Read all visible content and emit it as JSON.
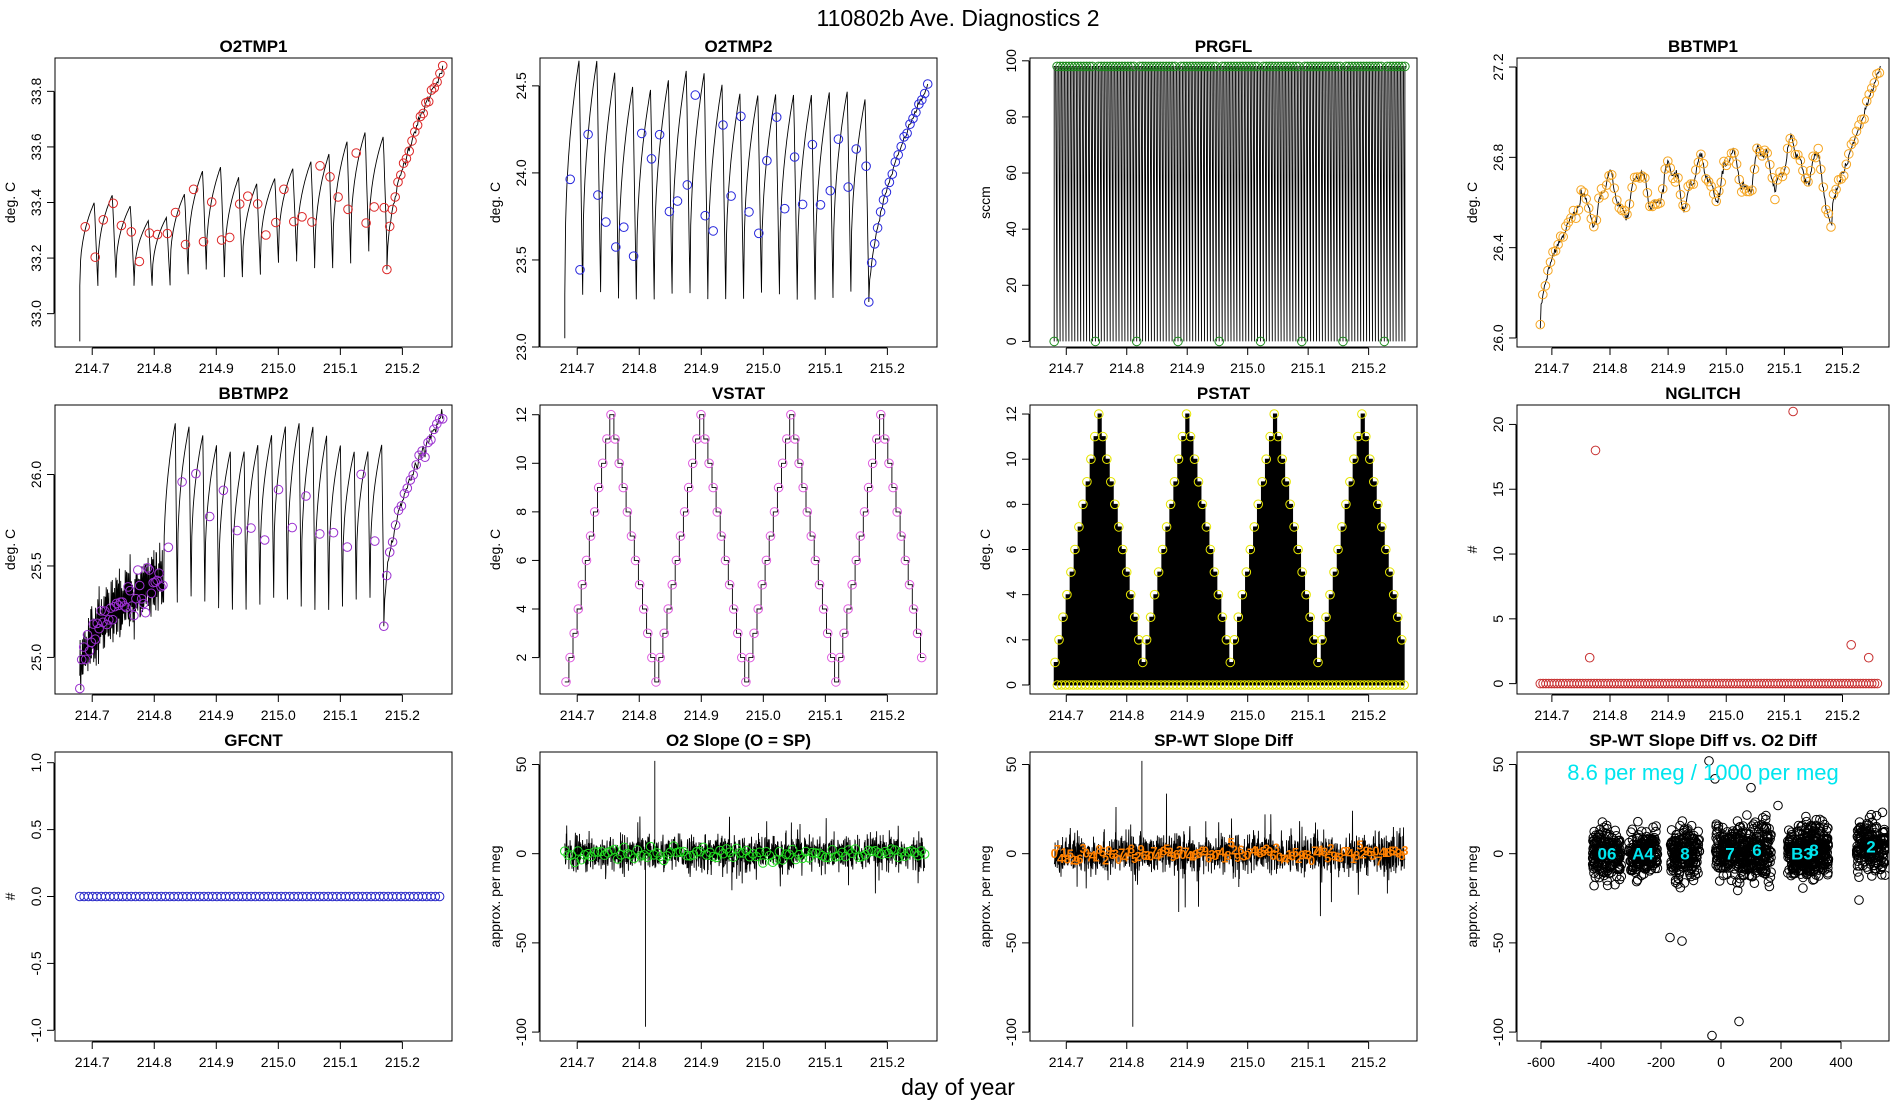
{
  "page": {
    "title": "110802b   Ave. Diagnostics 2",
    "xlabel": "day of year",
    "background": "#ffffff"
  },
  "chart_data": [
    {
      "id": "o2tmp1",
      "type": "line",
      "title": "O2TMP1",
      "ylabel": "deg. C",
      "xlim": [
        214.64,
        215.28
      ],
      "ylim": [
        32.88,
        33.92
      ],
      "xticks": [
        214.7,
        214.8,
        214.9,
        215.0,
        215.1,
        215.2
      ],
      "yticks": [
        33.0,
        33.2,
        33.4,
        33.6,
        33.8
      ],
      "ydec": 1,
      "gen": {
        "kind": "sawtooth",
        "start": 32.9,
        "base": [
          33.1,
          33.22
        ],
        "amp": [
          0.25,
          0.42
        ],
        "cycles": 17,
        "x0": 214.68,
        "xr": 215.265,
        "rampx": 215.175,
        "rampv": 33.88
      },
      "point_color": "#dc2828",
      "line_color": "#000000"
    },
    {
      "id": "o2tmp2",
      "type": "line",
      "title": "O2TMP2",
      "ylabel": "deg. C",
      "xlim": [
        214.64,
        215.28
      ],
      "ylim": [
        23.0,
        24.66
      ],
      "xticks": [
        214.7,
        214.8,
        214.9,
        215.0,
        215.1,
        215.2
      ],
      "yticks": [
        23.0,
        23.5,
        24.0,
        24.5
      ],
      "ydec": 1,
      "gen": {
        "kind": "sawtooth",
        "start": 23.05,
        "base": [
          23.3,
          23.3
        ],
        "amp": [
          1.3,
          1.1
        ],
        "cycles": 17,
        "x0": 214.68,
        "xr": 215.265,
        "rampx": 215.17,
        "rampv": 24.5
      },
      "point_color": "#2828dc",
      "line_color": "#000000"
    },
    {
      "id": "prgfl",
      "type": "line",
      "title": "PRGFL",
      "ylabel": "sccm",
      "xlim": [
        214.64,
        215.28
      ],
      "ylim": [
        -2,
        101
      ],
      "xticks": [
        214.7,
        214.8,
        214.9,
        215.0,
        215.1,
        215.2
      ],
      "yticks": [
        0,
        20,
        40,
        60,
        80,
        100
      ],
      "ydec": 0,
      "gen": {
        "kind": "spikes",
        "hi": 98,
        "lo": 0,
        "count": 120,
        "x0": 214.68,
        "xr": 215.26
      },
      "point_color": "#1e8c1e",
      "line_color": "#000000"
    },
    {
      "id": "bbtmp1",
      "type": "line",
      "title": "BBTMP1",
      "ylabel": "deg. C",
      "xlim": [
        214.64,
        215.28
      ],
      "ylim": [
        25.96,
        27.24
      ],
      "xticks": [
        214.7,
        214.8,
        214.9,
        215.0,
        215.1,
        215.2
      ],
      "yticks": [
        26.0,
        26.4,
        26.8,
        27.2
      ],
      "ydec": 1,
      "gen": {
        "kind": "smooth",
        "x0": 214.68,
        "xr": 215.265,
        "start": 26.05,
        "mid": 26.6,
        "mid2": 26.8,
        "end": 27.2
      },
      "point_color": "#f5a623",
      "line_color": "#000000"
    },
    {
      "id": "bbtmp2",
      "type": "line",
      "title": "BBTMP2",
      "ylabel": "deg. C",
      "xlim": [
        214.64,
        215.28
      ],
      "ylim": [
        24.8,
        26.38
      ],
      "xticks": [
        214.7,
        214.8,
        214.9,
        215.0,
        215.1,
        215.2
      ],
      "yticks": [
        25.0,
        25.5,
        26.0
      ],
      "ydec": 1,
      "gen": {
        "kind": "sawtooth2",
        "start": 24.85,
        "x0": 214.68,
        "xb": 214.815,
        "xr": 215.265,
        "rampx": 215.17,
        "rampv": 26.33
      },
      "point_color": "#9b30d0",
      "line_color": "#000000"
    },
    {
      "id": "vstat",
      "type": "line",
      "title": "VSTAT",
      "ylabel": "deg. C",
      "xlim": [
        214.64,
        215.28
      ],
      "ylim": [
        0.5,
        12.4
      ],
      "xticks": [
        214.7,
        214.8,
        214.9,
        215.0,
        215.1,
        215.2
      ],
      "yticks": [
        2,
        4,
        6,
        8,
        10,
        12
      ],
      "ydec": 0,
      "gen": {
        "kind": "stairs",
        "min": 1,
        "max": 12,
        "x0": 214.68,
        "xr": 215.26,
        "periods": 4
      },
      "point_color": "#e060e0",
      "line_color": "#000000"
    },
    {
      "id": "pstat",
      "type": "line",
      "title": "PSTAT",
      "ylabel": "deg. C",
      "xlim": [
        214.64,
        215.28
      ],
      "ylim": [
        -0.4,
        12.4
      ],
      "xticks": [
        214.7,
        214.8,
        214.9,
        215.0,
        215.1,
        215.2
      ],
      "yticks": [
        0,
        2,
        4,
        6,
        8,
        10,
        12
      ],
      "ydec": 0,
      "gen": {
        "kind": "pstairs",
        "min": 1,
        "max": 12,
        "x0": 214.68,
        "xr": 215.26,
        "periods": 4
      },
      "point_color": "#e6e600",
      "line_color": "#000000"
    },
    {
      "id": "nglitch",
      "type": "scatter",
      "title": "NGLITCH",
      "ylabel": "#",
      "xlim": [
        214.64,
        215.28
      ],
      "ylim": [
        -0.8,
        21.5
      ],
      "xticks": [
        214.7,
        214.8,
        214.9,
        215.0,
        215.1,
        215.2
      ],
      "yticks": [
        0,
        5,
        10,
        15,
        20
      ],
      "ydec": 0,
      "gen": {
        "kind": "zeros",
        "x0": 214.68,
        "xr": 215.26,
        "n": 120,
        "outliers": [
          [
            214.765,
            2
          ],
          [
            214.775,
            18
          ],
          [
            215.115,
            21
          ],
          [
            215.215,
            3
          ],
          [
            215.245,
            2
          ]
        ]
      },
      "point_color": "#c83232",
      "line_color": "#000000"
    },
    {
      "id": "gfcnt",
      "type": "scatter",
      "title": "GFCNT",
      "ylabel": "#",
      "xlim": [
        214.64,
        215.28
      ],
      "ylim": [
        -1.08,
        1.08
      ],
      "xticks": [
        214.7,
        214.8,
        214.9,
        215.0,
        215.1,
        215.2
      ],
      "yticks": [
        -1.0,
        -0.5,
        0.0,
        0.5,
        1.0
      ],
      "ydec": 1,
      "gen": {
        "kind": "zeros",
        "x0": 214.68,
        "xr": 215.26,
        "n": 85,
        "outliers": []
      },
      "point_color": "#2828c8",
      "line_color": "#000000"
    },
    {
      "id": "o2slope",
      "type": "line",
      "title": "O2 Slope (O = SP)",
      "ylabel": "approx. per meg",
      "xlim": [
        214.64,
        215.28
      ],
      "ylim": [
        -105,
        57
      ],
      "xticks": [
        214.7,
        214.8,
        214.9,
        215.0,
        215.1,
        215.2
      ],
      "yticks": [
        -100,
        -50,
        0,
        50
      ],
      "ydec": 0,
      "gen": {
        "kind": "noise",
        "x0": 214.68,
        "xr": 215.26,
        "n": 1500,
        "sd": 5,
        "spikes": [
          [
            214.81,
            -97
          ],
          [
            214.825,
            52
          ]
        ],
        "markers": "circles"
      },
      "point_color": "#22dd22",
      "line_color": "#000000"
    },
    {
      "id": "spwtdiff",
      "type": "line",
      "title": "SP-WT Slope Diff",
      "ylabel": "approx. per meg",
      "xlim": [
        214.64,
        215.28
      ],
      "ylim": [
        -105,
        57
      ],
      "xticks": [
        214.7,
        214.8,
        214.9,
        215.0,
        215.1,
        215.2
      ],
      "yticks": [
        -100,
        -50,
        0,
        50
      ],
      "ydec": 0,
      "gen": {
        "kind": "noise",
        "x0": 214.68,
        "xr": 215.26,
        "n": 1500,
        "sd": 5.5,
        "spikes": [
          [
            214.81,
            -97
          ],
          [
            214.825,
            52
          ]
        ],
        "markers": "digits"
      },
      "point_color": "#ff8000",
      "line_color": "#000000"
    },
    {
      "id": "spwtvso2",
      "type": "scatter",
      "title": "SP-WT Slope Diff vs. O2 Diff",
      "ylabel": "approx. per meg",
      "xlim": [
        -680,
        560
      ],
      "ylim": [
        -105,
        57
      ],
      "xticks": [
        -600,
        -400,
        -200,
        0,
        200,
        400
      ],
      "yticks": [
        -100,
        -50,
        0,
        50
      ],
      "ydec": 0,
      "annotation": "8.6 per meg / 1000 per meg",
      "annotation_color": "#00e5ee",
      "gen": {
        "kind": "clusters",
        "clusters": [
          [
            -380,
            0
          ],
          [
            -260,
            0
          ],
          [
            -120,
            0
          ],
          [
            30,
            0
          ],
          [
            120,
            2
          ],
          [
            270,
            0
          ],
          [
            310,
            2
          ],
          [
            500,
            4
          ]
        ],
        "spread": 60,
        "n": 1600,
        "outliers": [
          [
            -170,
            -47
          ],
          [
            -130,
            -49
          ],
          [
            -30,
            -102
          ],
          [
            60,
            -94
          ],
          [
            460,
            -26
          ],
          [
            -40,
            52
          ],
          [
            -20,
            42
          ],
          [
            190,
            27
          ],
          [
            100,
            37
          ]
        ],
        "labels": [
          "06",
          "A4",
          "8",
          "7",
          "6",
          "B3",
          "8",
          "2"
        ]
      },
      "point_color": "#000000",
      "line_color": "#000000"
    }
  ]
}
